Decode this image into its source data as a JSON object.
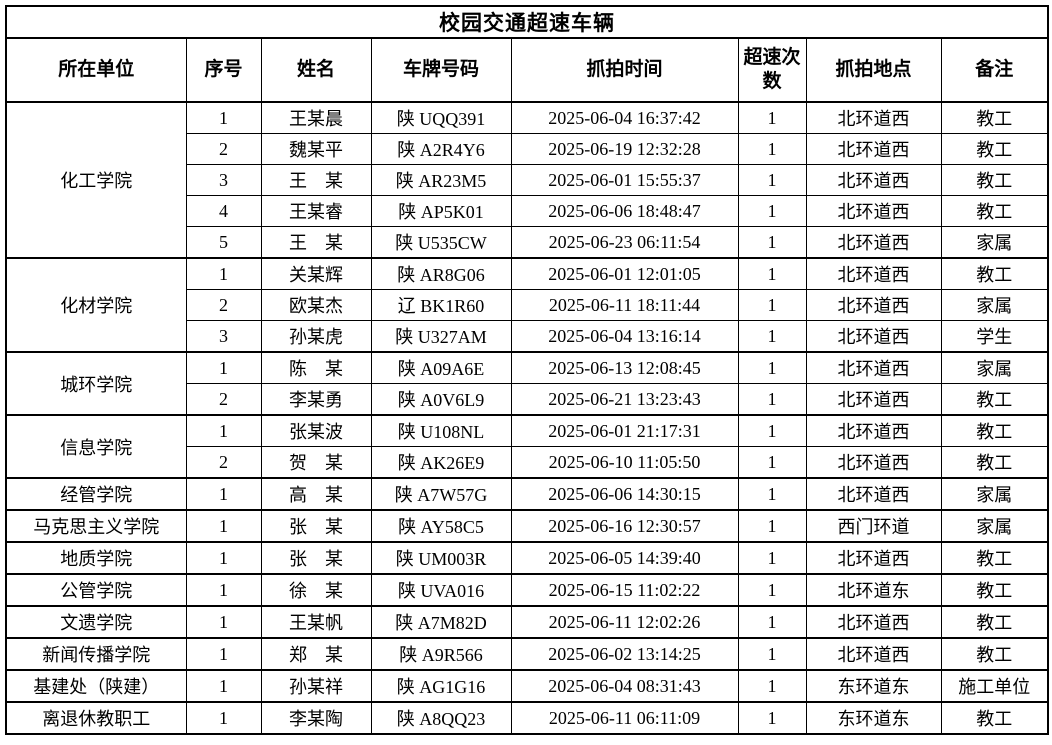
{
  "table": {
    "title": "校园交通超速车辆",
    "columns": [
      "所在单位",
      "序号",
      "姓名",
      "车牌号码",
      "抓拍时间",
      "超速次数",
      "抓拍地点",
      "备注"
    ],
    "groups": [
      {
        "unit": "化工学院",
        "rows": [
          [
            "1",
            "王某晨",
            "陕 UQQ391",
            "2025-06-04 16:37:42",
            "1",
            "北环道西",
            "教工"
          ],
          [
            "2",
            "魏某平",
            "陕 A2R4Y6",
            "2025-06-19 12:32:28",
            "1",
            "北环道西",
            "教工"
          ],
          [
            "3",
            "王　某",
            "陕 AR23M5",
            "2025-06-01 15:55:37",
            "1",
            "北环道西",
            "教工"
          ],
          [
            "4",
            "王某睿",
            "陕 AP5K01",
            "2025-06-06 18:48:47",
            "1",
            "北环道西",
            "教工"
          ],
          [
            "5",
            "王　某",
            "陕 U535CW",
            "2025-06-23 06:11:54",
            "1",
            "北环道西",
            "家属"
          ]
        ]
      },
      {
        "unit": "化材学院",
        "rows": [
          [
            "1",
            "关某辉",
            "陕 AR8G06",
            "2025-06-01 12:01:05",
            "1",
            "北环道西",
            "教工"
          ],
          [
            "2",
            "欧某杰",
            "辽 BK1R60",
            "2025-06-11 18:11:44",
            "1",
            "北环道西",
            "家属"
          ],
          [
            "3",
            "孙某虎",
            "陕 U327AM",
            "2025-06-04 13:16:14",
            "1",
            "北环道西",
            "学生"
          ]
        ]
      },
      {
        "unit": "城环学院",
        "rows": [
          [
            "1",
            "陈　某",
            "陕 A09A6E",
            "2025-06-13 12:08:45",
            "1",
            "北环道西",
            "家属"
          ],
          [
            "2",
            "李某勇",
            "陕 A0V6L9",
            "2025-06-21 13:23:43",
            "1",
            "北环道西",
            "教工"
          ]
        ]
      },
      {
        "unit": "信息学院",
        "rows": [
          [
            "1",
            "张某波",
            "陕 U108NL",
            "2025-06-01 21:17:31",
            "1",
            "北环道西",
            "教工"
          ],
          [
            "2",
            "贺　某",
            "陕 AK26E9",
            "2025-06-10 11:05:50",
            "1",
            "北环道西",
            "教工"
          ]
        ]
      },
      {
        "unit": "经管学院",
        "rows": [
          [
            "1",
            "高　某",
            "陕 A7W57G",
            "2025-06-06 14:30:15",
            "1",
            "北环道西",
            "家属"
          ]
        ]
      },
      {
        "unit": "马克思主义学院",
        "rows": [
          [
            "1",
            "张　某",
            "陕 AY58C5",
            "2025-06-16 12:30:57",
            "1",
            "西门环道",
            "家属"
          ]
        ]
      },
      {
        "unit": "地质学院",
        "rows": [
          [
            "1",
            "张　某",
            "陕 UM003R",
            "2025-06-05 14:39:40",
            "1",
            "北环道西",
            "教工"
          ]
        ]
      },
      {
        "unit": "公管学院",
        "rows": [
          [
            "1",
            "徐　某",
            "陕 UVA016",
            "2025-06-15 11:02:22",
            "1",
            "北环道东",
            "教工"
          ]
        ]
      },
      {
        "unit": "文遗学院",
        "rows": [
          [
            "1",
            "王某帆",
            "陕 A7M82D",
            "2025-06-11 12:02:26",
            "1",
            "北环道西",
            "教工"
          ]
        ]
      },
      {
        "unit": "新闻传播学院",
        "rows": [
          [
            "1",
            "郑　某",
            "陕 A9R566",
            "2025-06-02 13:14:25",
            "1",
            "北环道西",
            "教工"
          ]
        ]
      },
      {
        "unit": "基建处（陕建）",
        "rows": [
          [
            "1",
            "孙某祥",
            "陕 AG1G16",
            "2025-06-04 08:31:43",
            "1",
            "东环道东",
            "施工单位"
          ]
        ]
      },
      {
        "unit": "离退休教职工",
        "rows": [
          [
            "1",
            "李某陶",
            "陕 A8QQ23",
            "2025-06-11 06:11:09",
            "1",
            "东环道东",
            "教工"
          ]
        ]
      }
    ]
  }
}
